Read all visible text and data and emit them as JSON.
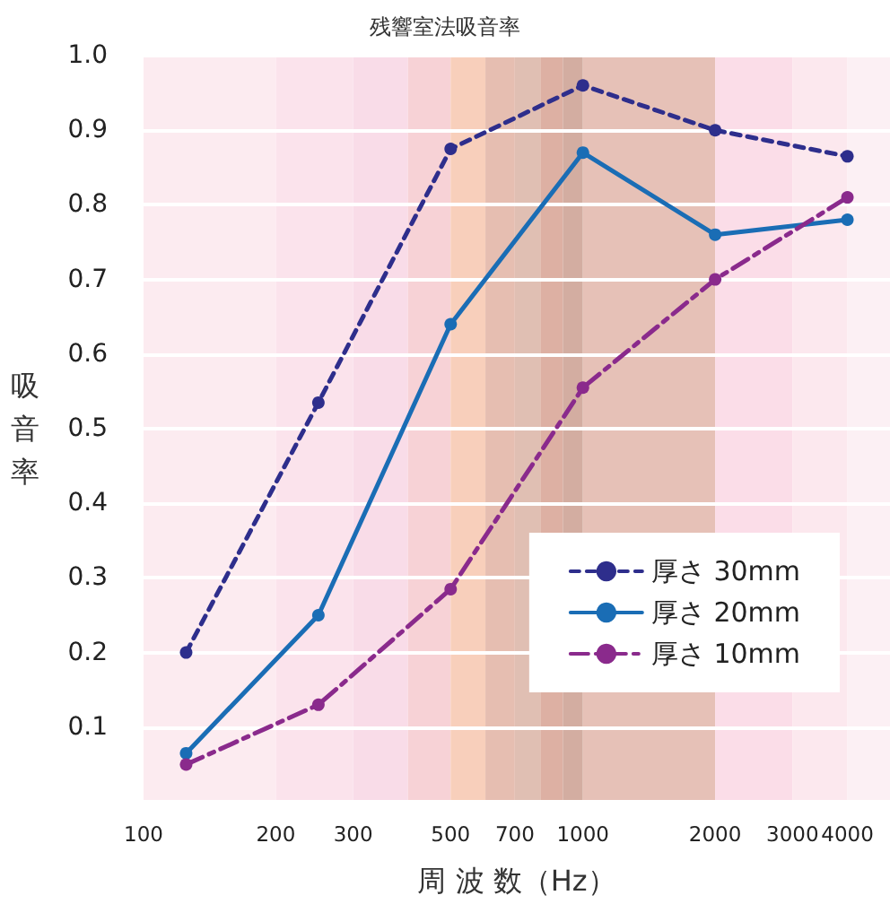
{
  "chart_data": {
    "type": "line",
    "title": "残響室法吸音率",
    "xlabel": "周 波 数（Hz）",
    "ylabel": "吸音率",
    "log": "x",
    "x": [
      125,
      250,
      500,
      1000,
      2000,
      4000
    ],
    "xlim": [
      100,
      5000
    ],
    "xticks": [
      100,
      200,
      300,
      500,
      700,
      1000,
      2000,
      3000,
      4000
    ],
    "ylim": [
      0,
      1
    ],
    "yticks": [
      {
        "value": 0,
        "label": null
      },
      0.1,
      0.2,
      0.3,
      0.4,
      0.5,
      0.6,
      0.7,
      0.8,
      0.9,
      {
        "value": 1,
        "label": "1.0"
      }
    ],
    "grid": "y",
    "legend": "bottom right",
    "marker": "circle",
    "series": [
      {
        "name": "厚さ 30mm",
        "color": "#2e2e8c",
        "line_style": "dotted",
        "values": [
          0.2,
          0.535,
          0.875,
          0.96,
          0.9,
          0.865
        ]
      },
      {
        "name": "厚さ 20mm",
        "color": "#1a6db5",
        "line_style": "solid",
        "values": [
          0.065,
          0.25,
          0.64,
          0.87,
          0.76,
          0.78
        ]
      },
      {
        "name": "厚さ 10mm",
        "color": "#8a2a8c",
        "line_style": "dashed",
        "values": [
          0.05,
          0.13,
          0.285,
          0.555,
          0.7,
          0.81
        ]
      }
    ],
    "bands": [
      {
        "axis": "x",
        "from": 100,
        "to": 200,
        "color": "#fcebf0"
      },
      {
        "axis": "x",
        "from": 200,
        "to": 300,
        "color": "#fbe3ec"
      },
      {
        "axis": "x",
        "from": 300,
        "to": 400,
        "color": "#f9dce8"
      },
      {
        "axis": "x",
        "from": 400,
        "to": 500,
        "color": "#f7d2d6"
      },
      {
        "axis": "x",
        "from": 500,
        "to": 600,
        "color": "#f8cfbb"
      },
      {
        "axis": "x",
        "from": 600,
        "to": 700,
        "color": "#e6beb1"
      },
      {
        "axis": "x",
        "from": 700,
        "to": 800,
        "color": "#e0bfb3"
      },
      {
        "axis": "x",
        "from": 800,
        "to": 900,
        "color": "#ddb0a3"
      },
      {
        "axis": "x",
        "from": 900,
        "to": 1000,
        "color": "#d3ada1"
      },
      {
        "axis": "x",
        "from": 1000,
        "to": 2000,
        "color": "#e6c1b7"
      },
      {
        "axis": "x",
        "from": 2000,
        "to": 3000,
        "color": "#fbdde8"
      },
      {
        "axis": "x",
        "from": 3000,
        "to": 4000,
        "color": "#fce8ee"
      },
      {
        "axis": "x",
        "from": 4000,
        "to": 5000,
        "color": "#fcf0f4"
      }
    ]
  }
}
